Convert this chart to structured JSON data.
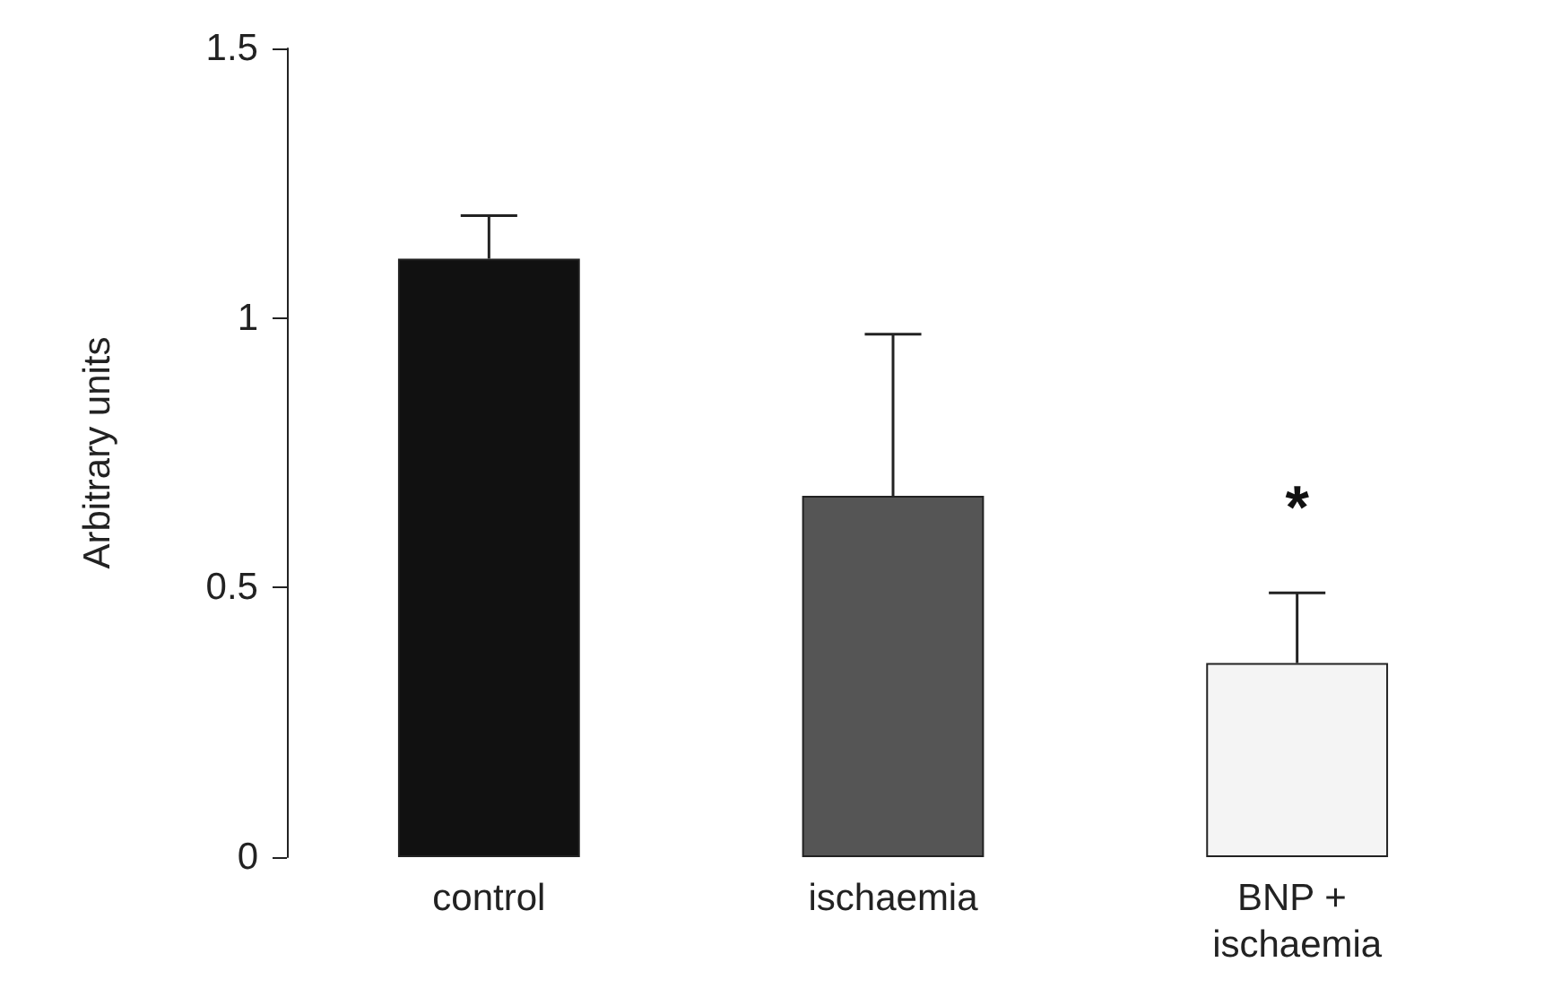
{
  "chart_data": {
    "type": "bar",
    "ylabel": "Arbitrary units",
    "categories": [
      "control",
      "ischaemia",
      "BNP + ischaemia"
    ],
    "values": [
      1.11,
      0.67,
      0.36
    ],
    "colors": [
      "#111111",
      "#555555",
      "#f4f4f4"
    ],
    "errors": [
      [
        1.11,
        1.19
      ],
      [
        0.67,
        0.97
      ],
      [
        0.36,
        0.49
      ]
    ],
    "annotations": [
      "*"
    ],
    "ylim": [
      0,
      1.5
    ],
    "yticks": [
      0,
      0.5,
      1,
      1.5
    ],
    "grid": false
  }
}
